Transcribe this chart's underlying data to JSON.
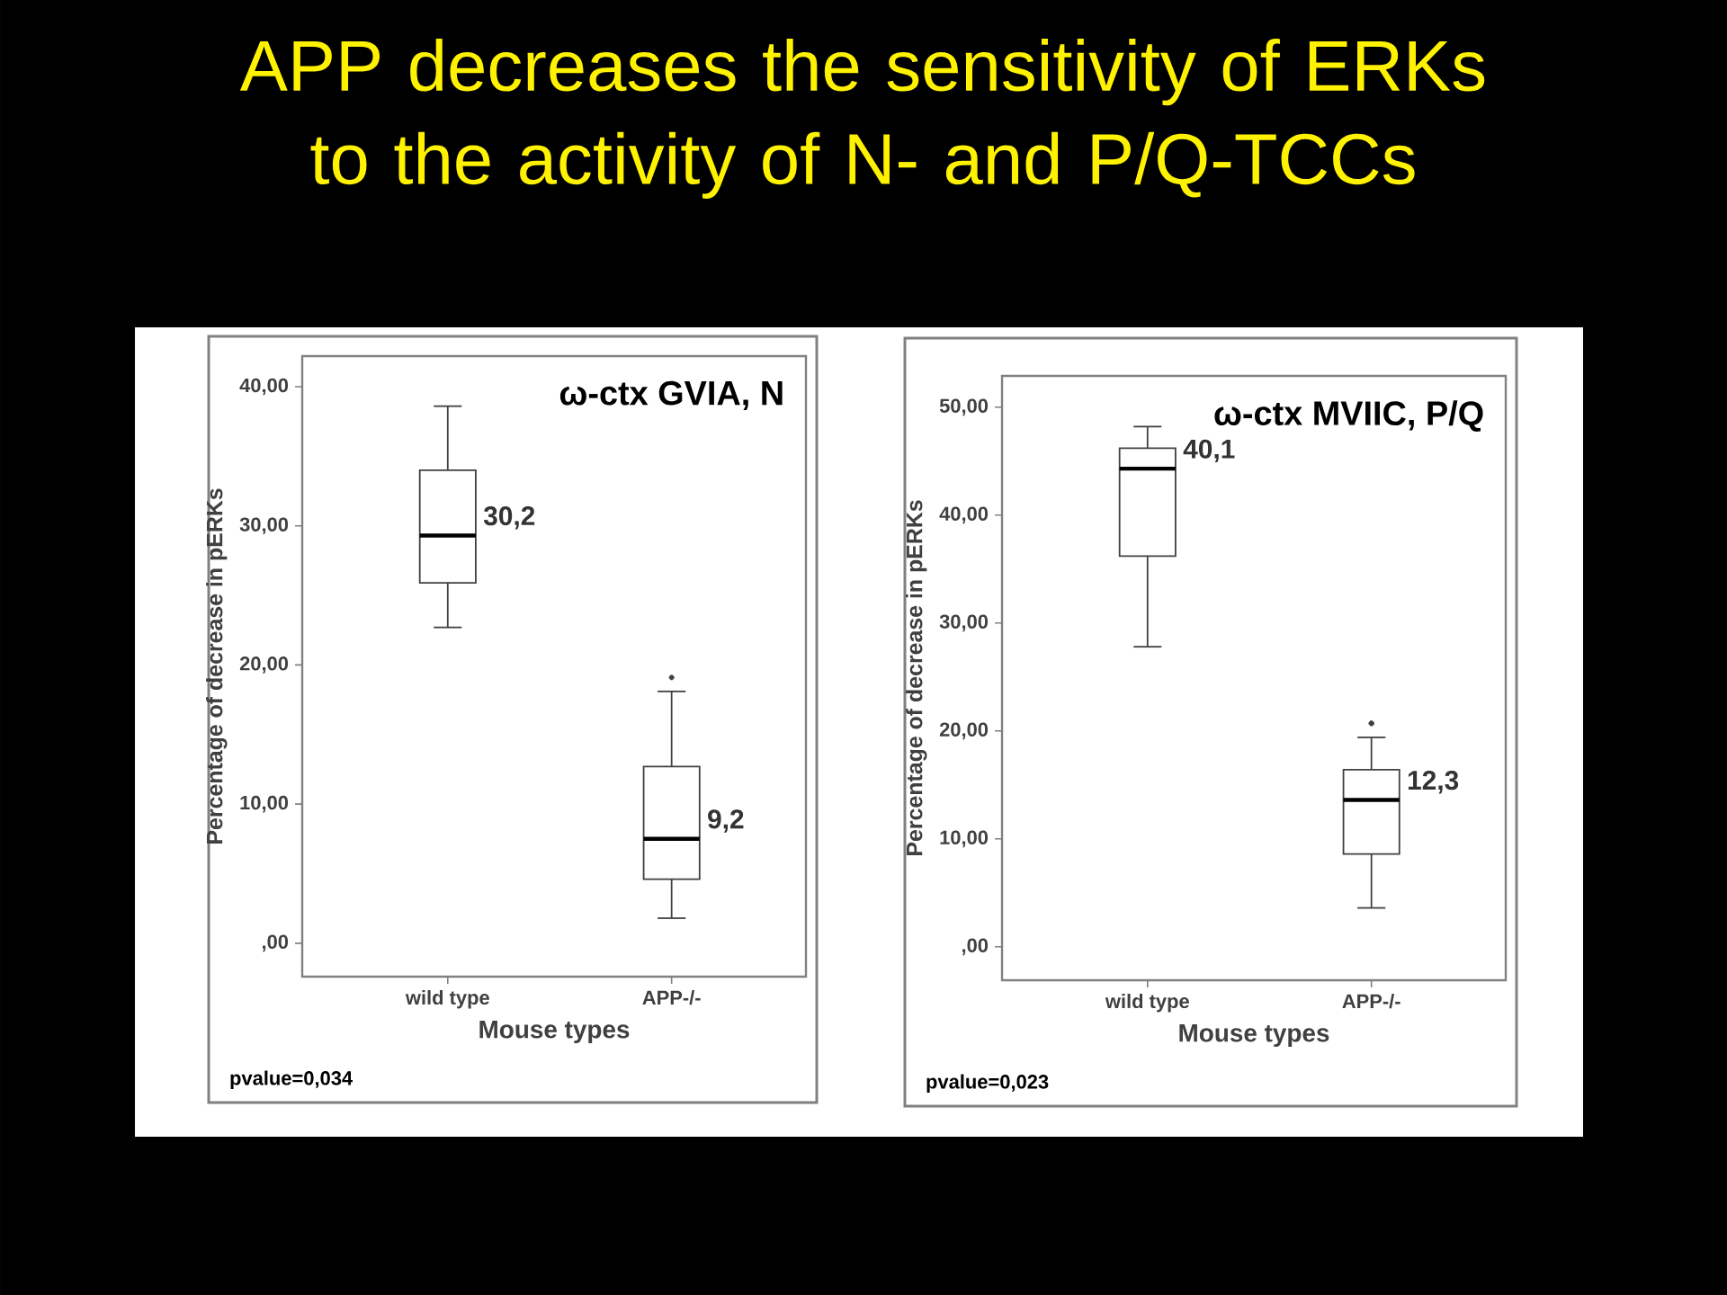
{
  "chart_data": [
    {
      "type": "box",
      "title": "APP decreases the sensitivity of ERKs to the activity of N- and P/Q-TCCs",
      "subtitle": "ω-ctx GVIA, N",
      "xlabel": "Mouse types",
      "ylabel": "Percentage of decrease in pERKs",
      "color": "#404040",
      "categories": [
        "wild type",
        "APP-/-"
      ],
      "boxes": [
        {
          "low": 22.7,
          "q1": 25.9,
          "median": 29.3,
          "q3": 34.0,
          "high": 38.6
        },
        {
          "low": 1.8,
          "q1": 4.6,
          "median": 7.5,
          "q3": 12.7,
          "high": 18.1,
          "outliers": [
            19.1
          ]
        }
      ],
      "ylim": [
        -2.4,
        42.2
      ],
      "yticks": [
        {
          "value": 0,
          "label": ",00"
        },
        {
          "value": 10,
          "label": "10,00"
        },
        {
          "value": 20,
          "label": "20,00"
        },
        {
          "value": 30,
          "label": "30,00"
        },
        {
          "value": 40,
          "label": "40,00"
        }
      ],
      "annotations": [
        "30,2",
        "9,2",
        "pvalue=0,034"
      ]
    },
    {
      "type": "box",
      "subtitle": "ω-ctx MVIIC, P/Q",
      "xlabel": "Mouse types",
      "ylabel": "Percentage of decrease in pERKs",
      "color": "#404040",
      "categories": [
        "wild type",
        "APP-/-"
      ],
      "boxes": [
        {
          "low": 27.8,
          "q1": 36.2,
          "median": 44.3,
          "q3": 46.2,
          "high": 48.2
        },
        {
          "low": 3.6,
          "q1": 8.6,
          "median": 13.6,
          "q3": 16.4,
          "high": 19.4,
          "outliers": [
            20.7,
            20.7
          ]
        }
      ],
      "ylim": [
        -3.1,
        52.9
      ],
      "yticks": [
        {
          "value": 0,
          "label": ",00"
        },
        {
          "value": 10,
          "label": "10,00"
        },
        {
          "value": 20,
          "label": "20,00"
        },
        {
          "value": 30,
          "label": "30,00"
        },
        {
          "value": 40,
          "label": "40,00"
        },
        {
          "value": 50,
          "label": "50,00"
        }
      ],
      "annotations": [
        "40,1",
        "12,3",
        "pvalue=0,023"
      ]
    }
  ]
}
